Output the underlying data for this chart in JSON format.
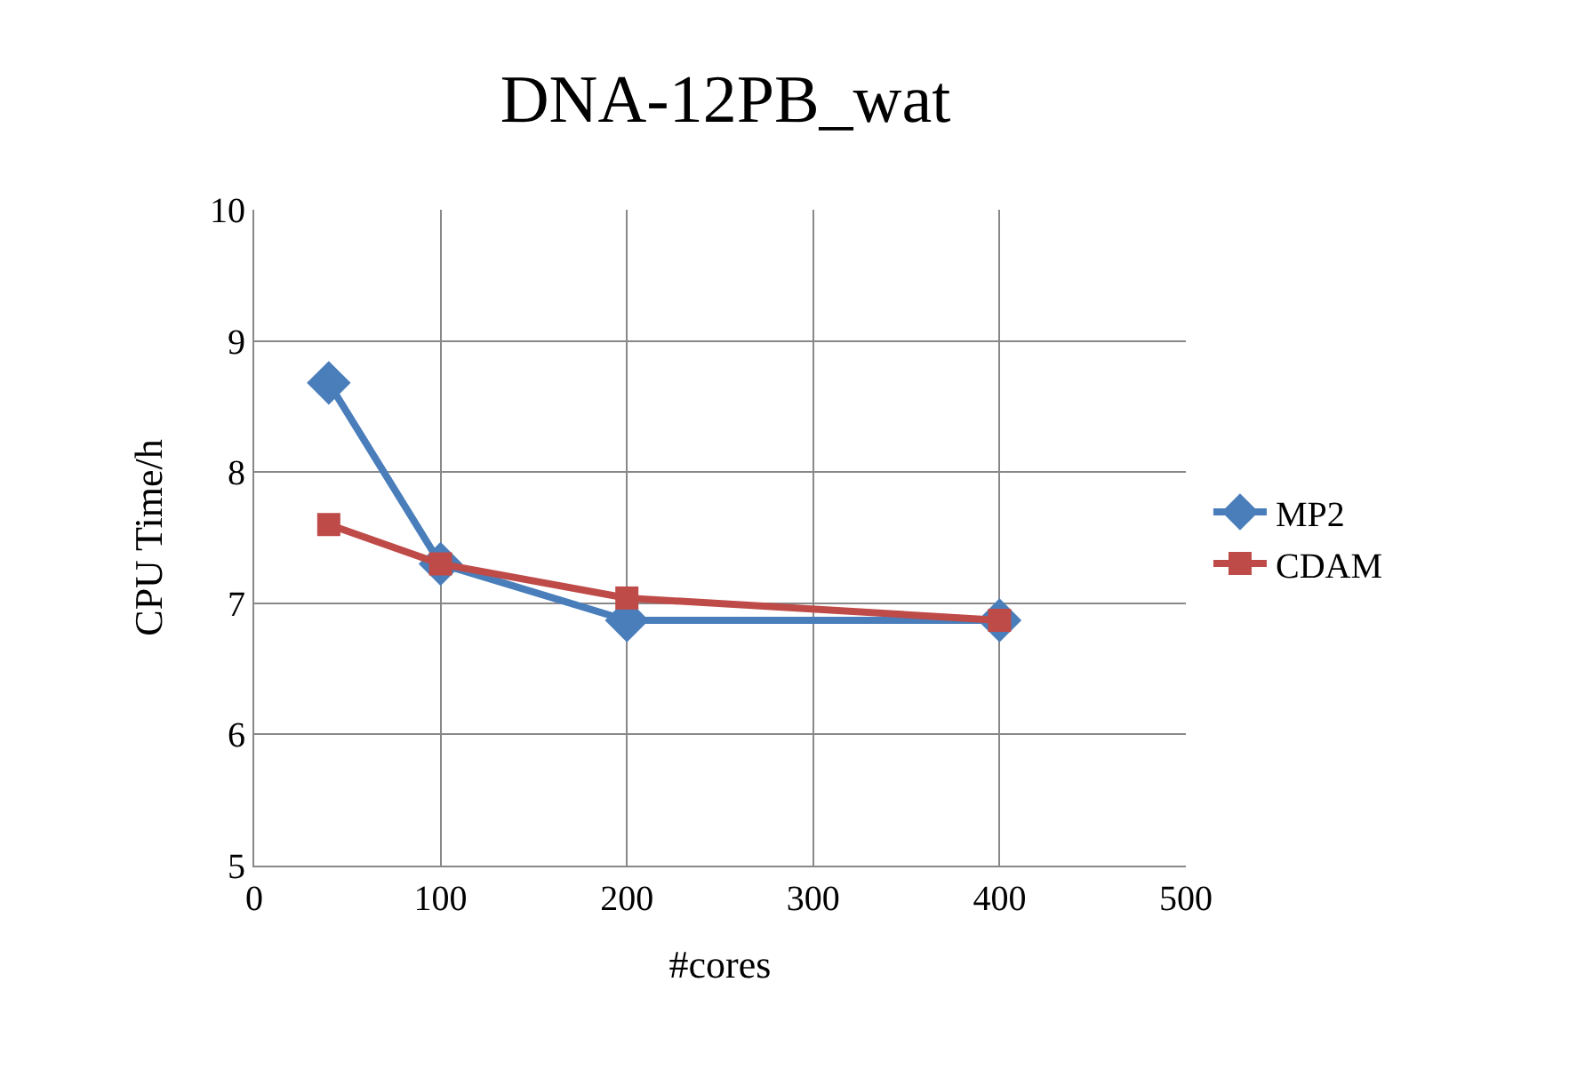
{
  "chart_data": {
    "type": "line",
    "title": "DNA-12PB_wat",
    "xlabel": "#cores",
    "ylabel": "CPU Time/h",
    "x": [
      40,
      100,
      200,
      400
    ],
    "series": [
      {
        "name": "MP2",
        "color": "#4a7ebb",
        "marker": "diamond",
        "values": [
          8.68,
          7.3,
          6.87,
          6.87
        ]
      },
      {
        "name": "CDAM",
        "color": "#be4b48",
        "marker": "square",
        "values": [
          7.6,
          7.3,
          7.04,
          6.87
        ]
      }
    ],
    "xlim": [
      0,
      500
    ],
    "xticks": [
      0,
      100,
      200,
      300,
      400,
      500
    ],
    "ylim": [
      5,
      10
    ],
    "yticks": [
      5,
      6,
      7,
      8,
      9,
      10
    ],
    "grid": true,
    "legend": "right",
    "line_style": "solid"
  }
}
